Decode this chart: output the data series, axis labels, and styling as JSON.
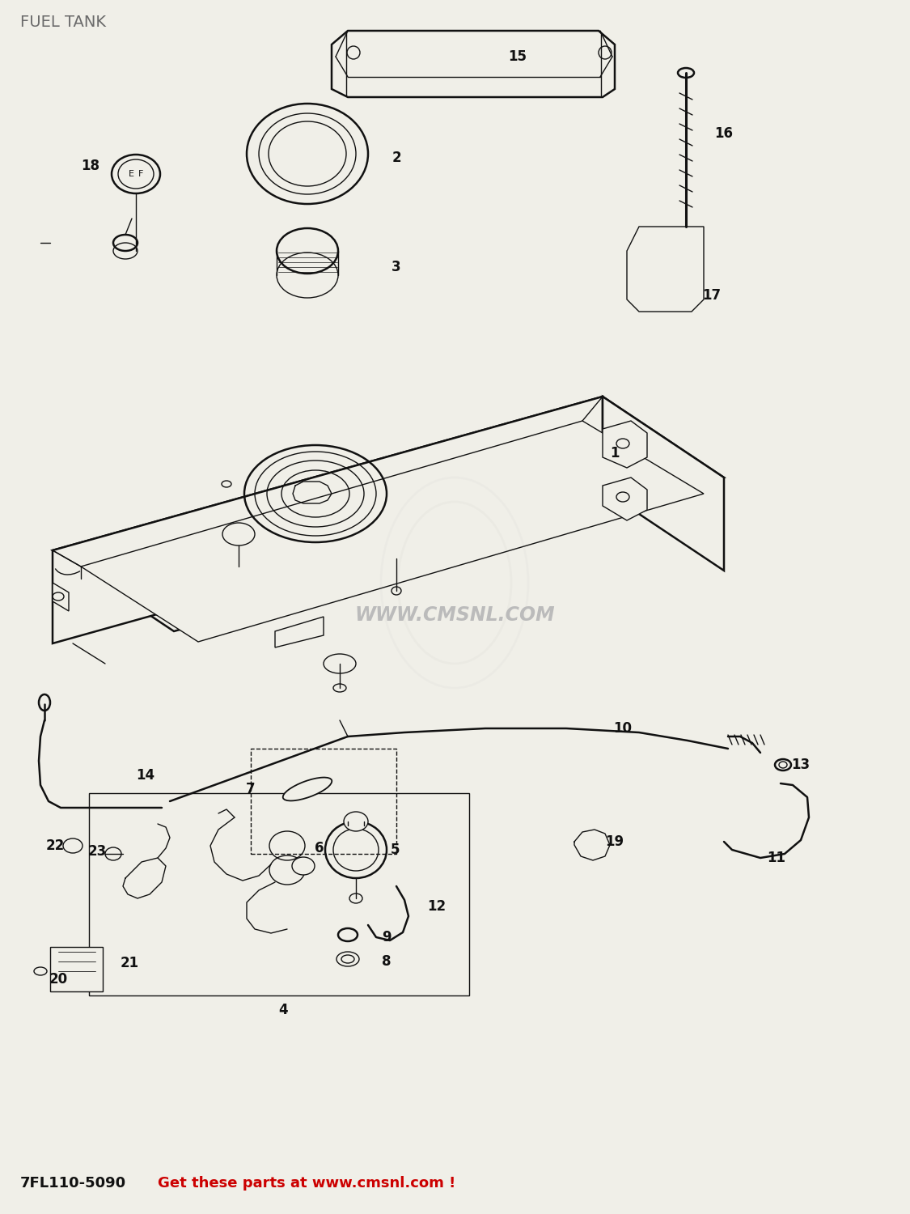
{
  "title": "FUEL TANK",
  "title_color": "#6a6a6a",
  "title_fontsize": 14,
  "bg_color": "#f0efe8",
  "footer_code": "7FL110-5090",
  "footer_text": "Get these parts at www.cmsnl.com !",
  "footer_code_color": "#111111",
  "footer_text_color": "#cc0000",
  "footer_fontsize": 20,
  "watermark": "WWW.CMSNL.COM",
  "watermark_color": "#bbbbbb",
  "line_color": "#111111",
  "lw_main": 1.8,
  "lw_thin": 1.0,
  "lw_med": 1.3
}
